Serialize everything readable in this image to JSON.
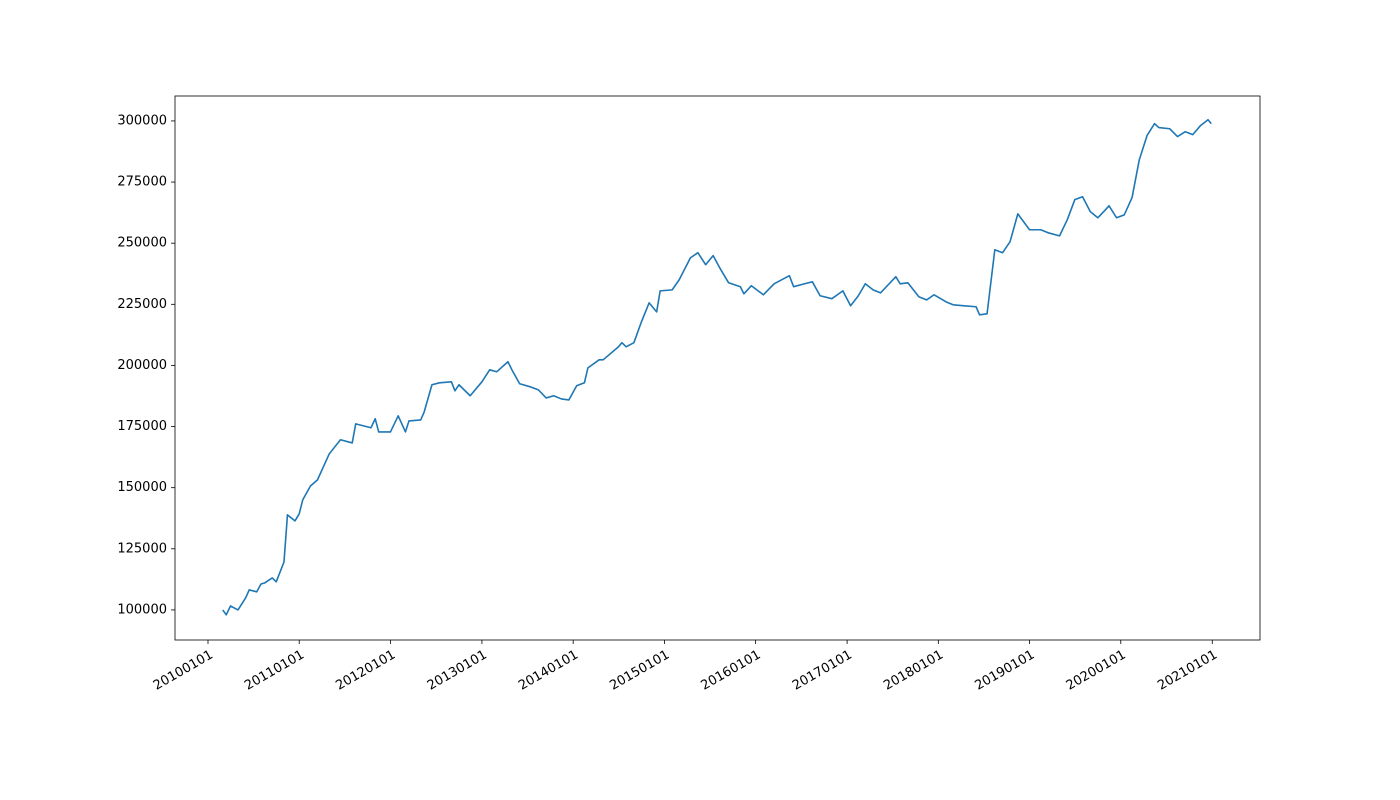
{
  "chart_data": {
    "type": "line",
    "x": [
      "2010-03-01",
      "2010-03-15",
      "2010-04-01",
      "2010-05-01",
      "2010-06-01",
      "2010-06-15",
      "2010-07-15",
      "2010-08-01",
      "2010-08-15",
      "2010-09-15",
      "2010-10-01",
      "2010-11-01",
      "2010-11-15",
      "2010-12-15",
      "2011-01-01",
      "2011-01-15",
      "2011-02-15",
      "2011-03-15",
      "2011-05-01",
      "2011-06-15",
      "2011-08-01",
      "2011-08-15",
      "2011-10-15",
      "2011-11-01",
      "2011-11-15",
      "2012-01-01",
      "2012-02-01",
      "2012-03-01",
      "2012-03-15",
      "2012-05-01",
      "2012-05-15",
      "2012-06-15",
      "2012-07-15",
      "2012-09-01",
      "2012-09-15",
      "2012-10-01",
      "2012-11-15",
      "2013-01-01",
      "2013-02-01",
      "2013-03-01",
      "2013-04-15",
      "2013-05-01",
      "2013-06-01",
      "2013-07-15",
      "2013-08-15",
      "2013-09-15",
      "2013-10-15",
      "2013-11-15",
      "2013-12-15",
      "2014-01-15",
      "2014-02-15",
      "2014-03-01",
      "2014-04-15",
      "2014-05-01",
      "2014-07-01",
      "2014-07-15",
      "2014-08-01",
      "2014-09-01",
      "2014-10-01",
      "2014-11-01",
      "2014-12-01",
      "2014-12-15",
      "2015-02-01",
      "2015-03-01",
      "2015-04-15",
      "2015-05-15",
      "2015-06-15",
      "2015-07-15",
      "2015-08-15",
      "2015-09-15",
      "2015-11-01",
      "2015-11-15",
      "2015-12-15",
      "2016-02-01",
      "2016-03-15",
      "2016-05-15",
      "2016-06-01",
      "2016-07-15",
      "2016-08-15",
      "2016-09-15",
      "2016-11-01",
      "2016-12-15",
      "2017-01-15",
      "2017-02-15",
      "2017-03-15",
      "2017-04-15",
      "2017-05-15",
      "2017-07-15",
      "2017-08-01",
      "2017-09-01",
      "2017-10-15",
      "2017-11-15",
      "2017-12-15",
      "2018-02-01",
      "2018-03-01",
      "2018-04-15",
      "2018-06-01",
      "2018-06-15",
      "2018-07-15",
      "2018-08-15",
      "2018-09-15",
      "2018-10-15",
      "2018-11-15",
      "2019-01-01",
      "2019-02-15",
      "2019-03-15",
      "2019-05-01",
      "2019-06-01",
      "2019-07-01",
      "2019-08-01",
      "2019-09-01",
      "2019-10-01",
      "2019-11-01",
      "2019-11-15",
      "2019-12-15",
      "2020-01-15",
      "2020-02-15",
      "2020-03-15",
      "2020-04-15",
      "2020-05-15",
      "2020-06-01",
      "2020-07-15",
      "2020-08-15",
      "2020-09-15",
      "2020-10-15",
      "2020-11-15",
      "2020-12-15",
      "2020-12-28"
    ],
    "series": [
      {
        "color": "#1f77b4",
        "values": [
          100000,
          98000,
          101600,
          100000,
          105000,
          108200,
          107400,
          110600,
          111000,
          113100,
          111500,
          119600,
          138900,
          136400,
          139300,
          145000,
          150700,
          153200,
          163800,
          169600,
          168300,
          176100,
          174500,
          178200,
          172800,
          172800,
          179400,
          172800,
          177300,
          177700,
          181000,
          192100,
          192900,
          193300,
          189600,
          192100,
          187600,
          193300,
          198200,
          197400,
          201500,
          198200,
          192500,
          191200,
          190000,
          186700,
          187600,
          186300,
          185900,
          191700,
          192900,
          199000,
          202300,
          202300,
          207600,
          209300,
          207600,
          209300,
          217800,
          225600,
          221900,
          230500,
          230900,
          235000,
          244000,
          246100,
          241200,
          244900,
          239100,
          233800,
          232200,
          229300,
          232600,
          228900,
          233400,
          236700,
          232200,
          233400,
          234200,
          228500,
          227300,
          230500,
          224400,
          228500,
          233400,
          230900,
          229700,
          236300,
          233400,
          233800,
          228100,
          226800,
          228900,
          226000,
          224800,
          224400,
          224000,
          220700,
          221100,
          247300,
          246100,
          250600,
          262000,
          255500,
          255500,
          254300,
          253000,
          259600,
          267800,
          269000,
          262900,
          260400,
          263700,
          265300,
          260400,
          261600,
          268600,
          284100,
          294000,
          298900,
          297300,
          296800,
          293600,
          295600,
          294400,
          298100,
          300500,
          298900
        ]
      }
    ],
    "xlim": [
      "2009-08-22",
      "2021-07-11"
    ],
    "xticks": [
      {
        "value": "2010-01-01",
        "label": "20100101"
      },
      {
        "value": "2011-01-01",
        "label": "20110101"
      },
      {
        "value": "2012-01-01",
        "label": "20120101"
      },
      {
        "value": "2013-01-01",
        "label": "20130101"
      },
      {
        "value": "2014-01-01",
        "label": "20140101"
      },
      {
        "value": "2015-01-01",
        "label": "20150101"
      },
      {
        "value": "2016-01-01",
        "label": "20160101"
      },
      {
        "value": "2017-01-01",
        "label": "20170101"
      },
      {
        "value": "2018-01-01",
        "label": "20180101"
      },
      {
        "value": "2019-01-01",
        "label": "20190101"
      },
      {
        "value": "2020-01-01",
        "label": "20200101"
      },
      {
        "value": "2021-01-01",
        "label": "20210101"
      }
    ],
    "ylim": [
      87700,
      310200
    ],
    "yticks": [
      100000,
      125000,
      150000,
      175000,
      200000,
      225000,
      250000,
      275000,
      300000
    ]
  }
}
